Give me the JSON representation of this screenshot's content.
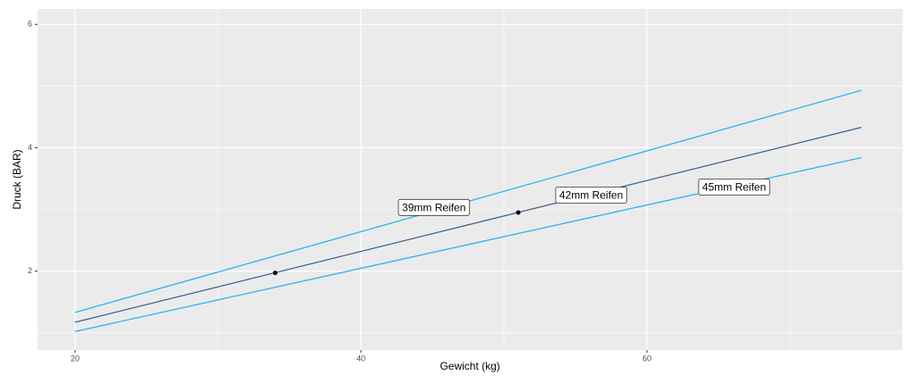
{
  "chart_data": {
    "type": "line",
    "x_label": "Gewicht (kg)",
    "y_label": "Druck (BAR)",
    "x": [
      20,
      75
    ],
    "series": [
      {
        "name": "39mm Reifen",
        "color": "#29b6f0",
        "values": [
          1.33,
          4.93
        ],
        "label_x": 45.1,
        "label_y": 3.02
      },
      {
        "name": "42mm Reifen",
        "color": "#3b5f8c",
        "values": [
          1.17,
          4.33
        ],
        "label_x": 56.1,
        "label_y": 3.22
      },
      {
        "name": "45mm Reifen",
        "color": "#29b6f0",
        "values": [
          1.02,
          3.84
        ],
        "label_x": 66.1,
        "label_y": 3.35
      }
    ],
    "points": {
      "color": "#000000",
      "x": [
        34,
        51
      ],
      "values": [
        1.97,
        2.95
      ]
    },
    "xlim": [
      17.375,
      77.875
    ],
    "ylim": [
      0.72,
      6.25
    ],
    "xticks": [
      20,
      40,
      60
    ],
    "yticks": [
      2,
      4,
      6
    ],
    "x_minor_breaks": [
      30,
      50,
      70
    ],
    "y_minor_breaks": [
      1,
      3,
      5
    ],
    "grid": true
  }
}
